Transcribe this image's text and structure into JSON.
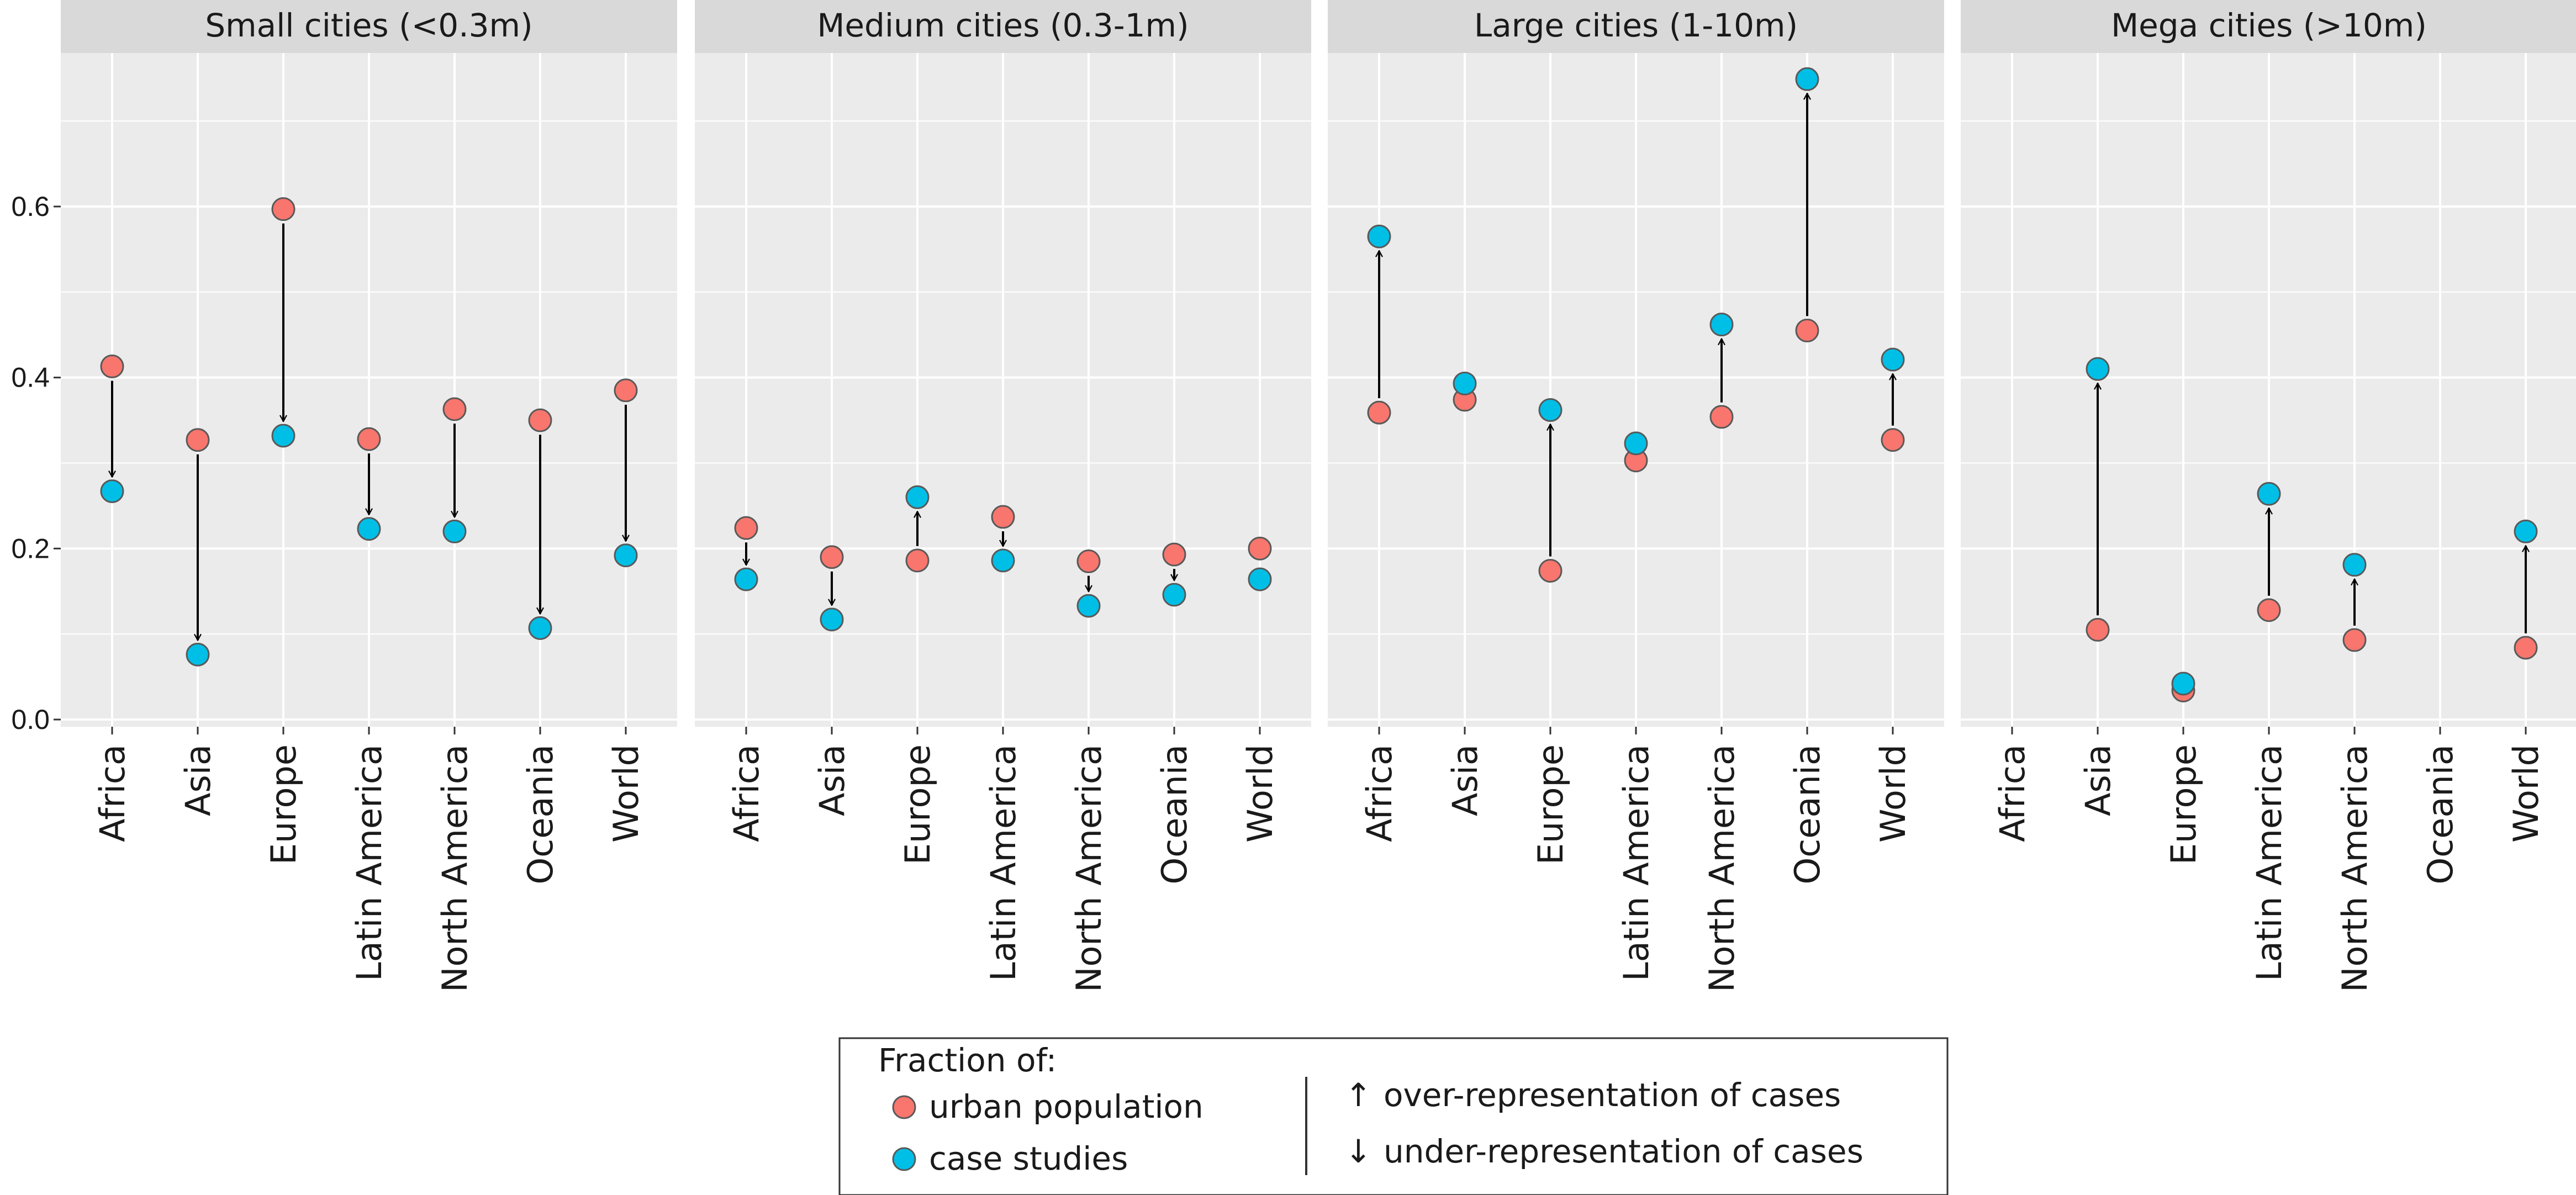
{
  "chart_data": {
    "type": "scatter",
    "ylim": [
      0,
      0.78
    ],
    "yticks": [
      0,
      0.2,
      0.4,
      0.6
    ],
    "ytick_labels": [
      "0.0",
      "0.2",
      "0.4",
      "0.6"
    ],
    "grid": true,
    "categories": [
      "Africa",
      "Asia",
      "Europe",
      "Latin America",
      "North America",
      "Oceania",
      "World"
    ],
    "colors": {
      "urban": "#F8766D",
      "cases": "#00BFE6",
      "panel_bg": "#EBEBEB",
      "strip_bg": "#D9D9D9",
      "grid": "#FFFFFF",
      "arrow": "#000000"
    },
    "panels": [
      {
        "title": "Small cities (<0.3m)",
        "urban": [
          0.413,
          0.327,
          0.597,
          0.328,
          0.363,
          0.35,
          0.385
        ],
        "cases": [
          0.267,
          0.076,
          0.332,
          0.223,
          0.22,
          0.107,
          0.192
        ]
      },
      {
        "title": "Medium cities (0.3-1m)",
        "urban": [
          0.224,
          0.19,
          0.186,
          0.237,
          0.185,
          0.193,
          0.2
        ],
        "cases": [
          0.164,
          0.117,
          0.26,
          0.186,
          0.133,
          0.146,
          0.164
        ]
      },
      {
        "title": "Large cities (1-10m)",
        "urban": [
          0.359,
          0.374,
          0.174,
          0.303,
          0.354,
          0.455,
          0.327
        ],
        "cases": [
          0.565,
          0.393,
          0.362,
          0.323,
          0.462,
          0.749,
          0.421
        ]
      },
      {
        "title": "Mega cities (>10m)",
        "urban": [
          null,
          0.105,
          0.034,
          0.128,
          0.093,
          null,
          0.084
        ],
        "cases": [
          null,
          0.41,
          0.042,
          0.264,
          0.181,
          null,
          0.22
        ]
      }
    ],
    "legend": {
      "title": "Fraction of:",
      "urban_label": "urban population",
      "cases_label": "case studies",
      "over_label": "over-representation of cases",
      "under_label": "under-representation of cases",
      "up_arrow": "↑",
      "down_arrow": "↓",
      "position": "bottom"
    }
  }
}
